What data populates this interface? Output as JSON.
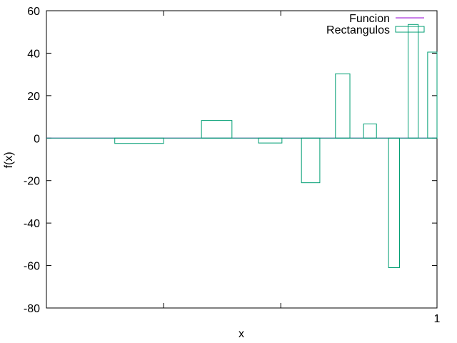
{
  "chart_data": {
    "type": "bar",
    "xlabel": "x",
    "ylabel": "f(x)",
    "ylim": [
      -80,
      60
    ],
    "yticks": [
      "60",
      "40",
      "20",
      "0",
      "-20",
      "-40",
      "-60",
      "-80"
    ],
    "ytick_values": [
      60,
      40,
      20,
      0,
      -20,
      -40,
      -60,
      -80
    ],
    "xlim": [
      0,
      1
    ],
    "xticks_labeled": [
      {
        "value": 1,
        "label": "1"
      }
    ],
    "xticks_minor": [
      0.3,
      0.6
    ],
    "grid": false,
    "legend_position": "top-right",
    "legend": [
      {
        "name": "Funcion",
        "color": "#9400d3",
        "style": "line"
      },
      {
        "name": "Rectangulos",
        "color": "#009e73",
        "style": "box"
      }
    ],
    "series": [
      {
        "name": "Funcion",
        "color": "#9400d3",
        "x": [
          0,
          1
        ],
        "y": [
          0,
          0
        ]
      },
      {
        "name": "Rectangulos",
        "color": "#009e73",
        "bars": [
          {
            "x0": 0.175,
            "x1": 0.3,
            "value": -2.5
          },
          {
            "x0": 0.397,
            "x1": 0.475,
            "value": 8.3
          },
          {
            "x0": 0.543,
            "x1": 0.603,
            "value": -2.3
          },
          {
            "x0": 0.653,
            "x1": 0.7,
            "value": -21
          },
          {
            "x0": 0.74,
            "x1": 0.777,
            "value": 30.3
          },
          {
            "x0": 0.812,
            "x1": 0.845,
            "value": 6.7
          },
          {
            "x0": 0.876,
            "x1": 0.904,
            "value": -61
          },
          {
            "x0": 0.926,
            "x1": 0.952,
            "value": 53.5
          },
          {
            "x0": 0.976,
            "x1": 1.0,
            "value": 40.5
          }
        ]
      }
    ]
  }
}
